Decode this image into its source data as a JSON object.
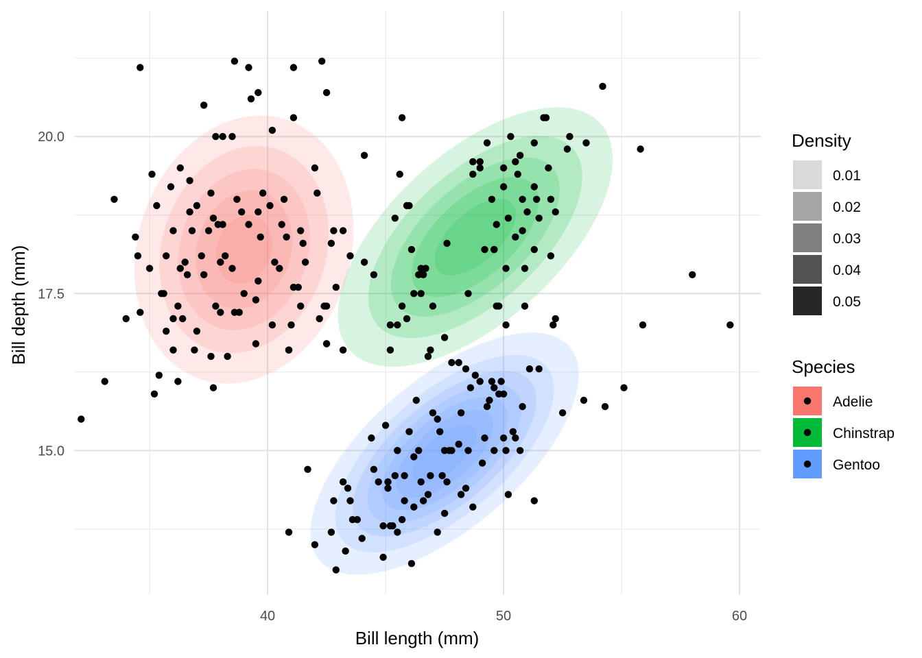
{
  "chart_data": {
    "type": "scatter",
    "subtype": "density-contour-with-points",
    "xlabel": "Bill length (mm)",
    "ylabel": "Bill depth (mm)",
    "xlim": [
      31.8,
      60.9
    ],
    "ylim": [
      12.7,
      22.0
    ],
    "x_ticks": [
      40,
      50,
      60
    ],
    "x_tick_labels": [
      "40",
      "50",
      "60"
    ],
    "y_ticks": [
      15.0,
      17.5,
      20.0
    ],
    "y_tick_labels": [
      "15.0",
      "17.5",
      "20.0"
    ],
    "grid": true,
    "legend_position": "right",
    "density_legend": {
      "title": "Density",
      "levels": [
        {
          "label": "0.01",
          "color": "#d9d9d9"
        },
        {
          "label": "0.02",
          "color": "#a6a6a6"
        },
        {
          "label": "0.03",
          "color": "#7f7f7f"
        },
        {
          "label": "0.04",
          "color": "#525252"
        },
        {
          "label": "0.05",
          "color": "#262626"
        }
      ]
    },
    "species_legend": {
      "title": "Species",
      "items": [
        {
          "label": "Adelie",
          "color": "#F8766D"
        },
        {
          "label": "Chinstrap",
          "color": "#00BA38"
        },
        {
          "label": "Gentoo",
          "color": "#619CFF"
        }
      ]
    },
    "density": [
      {
        "species": "Adelie",
        "color": "#F8766D",
        "cx": 39.0,
        "cy": 18.2,
        "sx": 2.5,
        "sy": 1.15,
        "rho": 0.15,
        "levels": [
          0.01,
          0.02,
          0.03,
          0.04,
          0.05,
          0.06,
          0.07
        ]
      },
      {
        "species": "Chinstrap",
        "color": "#00BA38",
        "cx": 48.8,
        "cy": 18.4,
        "sx": 3.1,
        "sy": 1.1,
        "rho": 0.6,
        "levels": [
          0.01,
          0.02,
          0.03,
          0.04,
          0.05,
          0.06,
          0.07
        ]
      },
      {
        "species": "Gentoo",
        "color": "#619CFF",
        "cx": 47.5,
        "cy": 14.95,
        "sx": 2.8,
        "sy": 0.95,
        "rho": 0.65,
        "levels": [
          0.01,
          0.02,
          0.03,
          0.04,
          0.05,
          0.06,
          0.07
        ]
      }
    ],
    "points": [
      [
        32.1,
        15.5
      ],
      [
        33.1,
        16.1
      ],
      [
        33.5,
        19.0
      ],
      [
        34.0,
        17.1
      ],
      [
        34.4,
        18.4
      ],
      [
        34.5,
        18.1
      ],
      [
        34.6,
        17.2
      ],
      [
        34.6,
        21.1
      ],
      [
        35.0,
        17.9
      ],
      [
        35.1,
        19.4
      ],
      [
        35.2,
        15.9
      ],
      [
        35.3,
        18.9
      ],
      [
        35.4,
        16.2
      ],
      [
        35.5,
        17.5
      ],
      [
        35.6,
        17.5
      ],
      [
        35.7,
        16.9
      ],
      [
        35.9,
        19.2
      ],
      [
        36.0,
        18.5
      ],
      [
        36.0,
        17.1
      ],
      [
        36.0,
        16.6
      ],
      [
        36.2,
        16.1
      ],
      [
        36.2,
        17.3
      ],
      [
        36.3,
        19.5
      ],
      [
        36.4,
        17.1
      ],
      [
        36.5,
        18.0
      ],
      [
        36.6,
        17.8
      ],
      [
        36.7,
        19.3
      ],
      [
        36.7,
        18.8
      ],
      [
        36.9,
        16.6
      ],
      [
        37.0,
        16.9
      ],
      [
        37.2,
        18.1
      ],
      [
        37.3,
        17.8
      ],
      [
        37.5,
        18.5
      ],
      [
        37.6,
        19.1
      ],
      [
        37.7,
        16.0
      ],
      [
        37.7,
        18.7
      ],
      [
        37.8,
        17.3
      ],
      [
        37.8,
        20.0
      ],
      [
        37.9,
        18.6
      ],
      [
        38.0,
        17.2
      ],
      [
        38.1,
        18.6
      ],
      [
        38.2,
        18.1
      ],
      [
        38.5,
        17.9
      ],
      [
        38.6,
        17.2
      ],
      [
        38.8,
        17.2
      ],
      [
        39.0,
        17.5
      ],
      [
        39.2,
        18.6
      ],
      [
        39.5,
        16.7
      ],
      [
        39.6,
        17.7
      ],
      [
        39.7,
        18.4
      ],
      [
        40.1,
        18.9
      ],
      [
        40.3,
        18.0
      ],
      [
        40.5,
        17.9
      ],
      [
        40.6,
        18.6
      ],
      [
        40.8,
        18.4
      ],
      [
        40.9,
        16.6
      ],
      [
        41.1,
        17.6
      ],
      [
        41.3,
        17.6
      ],
      [
        41.4,
        18.5
      ],
      [
        41.5,
        18.3
      ],
      [
        41.6,
        18.0
      ],
      [
        42.0,
        19.5
      ],
      [
        42.2,
        17.1
      ],
      [
        42.5,
        16.7
      ],
      [
        42.8,
        18.5
      ],
      [
        43.2,
        18.5
      ],
      [
        35.7,
        18.1
      ],
      [
        36.3,
        17.9
      ],
      [
        37.3,
        20.5
      ],
      [
        38.0,
        18.0
      ],
      [
        38.6,
        21.2
      ],
      [
        38.9,
        18.8
      ],
      [
        39.2,
        21.1
      ],
      [
        39.3,
        20.6
      ],
      [
        39.6,
        20.7
      ],
      [
        40.2,
        20.1
      ],
      [
        41.1,
        20.3
      ],
      [
        41.1,
        21.1
      ],
      [
        42.3,
        21.2
      ],
      [
        42.5,
        20.7
      ],
      [
        38.1,
        20.0
      ],
      [
        38.5,
        20.0
      ],
      [
        37.6,
        16.5
      ],
      [
        38.3,
        16.5
      ],
      [
        39.5,
        17.4
      ],
      [
        39.8,
        19.1
      ],
      [
        40.7,
        19.0
      ],
      [
        41.0,
        17.0
      ],
      [
        37.0,
        18.9
      ],
      [
        36.8,
        18.5
      ],
      [
        38.7,
        19.0
      ],
      [
        39.6,
        18.8
      ],
      [
        40.2,
        17.0
      ],
      [
        41.4,
        17.3
      ],
      [
        42.1,
        19.1
      ],
      [
        42.7,
        18.3
      ],
      [
        44.1,
        19.7
      ],
      [
        43.5,
        18.1
      ],
      [
        44.1,
        18.0
      ],
      [
        40.9,
        16.6
      ],
      [
        42.4,
        17.3
      ],
      [
        42.5,
        17.3
      ],
      [
        42.5,
        16.7
      ],
      [
        42.9,
        17.6
      ],
      [
        43.2,
        16.6
      ],
      [
        44.5,
        17.8
      ],
      [
        45.2,
        16.6
      ],
      [
        45.2,
        17.0
      ],
      [
        45.4,
        18.7
      ],
      [
        45.5,
        17.0
      ],
      [
        45.6,
        19.4
      ],
      [
        45.7,
        17.3
      ],
      [
        45.9,
        17.1
      ],
      [
        45.9,
        18.9
      ],
      [
        46.0,
        18.9
      ],
      [
        46.1,
        18.2
      ],
      [
        46.2,
        17.5
      ],
      [
        46.4,
        17.8
      ],
      [
        46.5,
        17.9
      ],
      [
        46.6,
        17.8
      ],
      [
        46.7,
        17.9
      ],
      [
        46.8,
        16.5
      ],
      [
        46.9,
        16.6
      ],
      [
        47.0,
        17.3
      ],
      [
        47.5,
        16.8
      ],
      [
        47.6,
        18.3
      ],
      [
        48.1,
        16.4
      ],
      [
        48.5,
        17.5
      ],
      [
        49.0,
        19.5
      ],
      [
        49.0,
        19.6
      ],
      [
        49.2,
        18.2
      ],
      [
        49.3,
        19.9
      ],
      [
        49.5,
        19.0
      ],
      [
        49.6,
        18.2
      ],
      [
        49.7,
        18.6
      ],
      [
        49.8,
        17.3
      ],
      [
        50.0,
        19.5
      ],
      [
        50.1,
        17.9
      ],
      [
        50.2,
        18.7
      ],
      [
        50.3,
        20.0
      ],
      [
        50.5,
        18.4
      ],
      [
        50.5,
        19.6
      ],
      [
        50.6,
        19.4
      ],
      [
        50.7,
        19.7
      ],
      [
        50.8,
        19.0
      ],
      [
        50.8,
        18.5
      ],
      [
        50.9,
        17.9
      ],
      [
        51.0,
        18.8
      ],
      [
        51.3,
        18.2
      ],
      [
        51.3,
        19.2
      ],
      [
        51.3,
        19.9
      ],
      [
        51.4,
        19.0
      ],
      [
        51.5,
        18.7
      ],
      [
        51.7,
        20.3
      ],
      [
        51.9,
        19.5
      ],
      [
        52.0,
        18.1
      ],
      [
        52.0,
        19.0
      ],
      [
        52.2,
        18.8
      ],
      [
        52.7,
        19.8
      ],
      [
        52.8,
        20.0
      ],
      [
        53.5,
        19.9
      ],
      [
        54.2,
        20.8
      ],
      [
        55.8,
        19.8
      ],
      [
        58.0,
        17.8
      ],
      [
        49.7,
        17.3
      ],
      [
        50.9,
        17.3
      ],
      [
        50.1,
        17.0
      ],
      [
        46.5,
        17.5
      ],
      [
        45.7,
        20.3
      ],
      [
        49.6,
        18.2
      ],
      [
        51.8,
        20.3
      ],
      [
        50.0,
        19.2
      ],
      [
        48.7,
        19.4
      ],
      [
        48.7,
        19.6
      ],
      [
        40.9,
        13.7
      ],
      [
        41.7,
        14.7
      ],
      [
        42.0,
        13.5
      ],
      [
        42.7,
        13.7
      ],
      [
        42.8,
        14.2
      ],
      [
        42.9,
        13.1
      ],
      [
        43.2,
        14.5
      ],
      [
        43.3,
        13.4
      ],
      [
        43.5,
        14.2
      ],
      [
        43.6,
        13.9
      ],
      [
        43.8,
        13.9
      ],
      [
        44.0,
        13.6
      ],
      [
        44.4,
        15.2
      ],
      [
        44.5,
        14.7
      ],
      [
        44.9,
        13.3
      ],
      [
        45.0,
        15.4
      ],
      [
        45.1,
        14.5
      ],
      [
        45.2,
        13.8
      ],
      [
        45.3,
        13.8
      ],
      [
        45.4,
        14.6
      ],
      [
        45.5,
        13.7
      ],
      [
        45.5,
        15.0
      ],
      [
        45.7,
        13.9
      ],
      [
        45.8,
        14.6
      ],
      [
        46.1,
        13.2
      ],
      [
        46.2,
        14.9
      ],
      [
        46.4,
        15.0
      ],
      [
        46.5,
        14.5
      ],
      [
        46.6,
        14.2
      ],
      [
        46.8,
        14.3
      ],
      [
        47.0,
        15.6
      ],
      [
        47.2,
        13.7
      ],
      [
        47.3,
        15.3
      ],
      [
        47.4,
        14.6
      ],
      [
        47.5,
        14.0
      ],
      [
        47.6,
        14.5
      ],
      [
        47.8,
        15.0
      ],
      [
        48.1,
        15.1
      ],
      [
        48.2,
        14.3
      ],
      [
        48.4,
        14.4
      ],
      [
        48.5,
        15.0
      ],
      [
        48.7,
        14.1
      ],
      [
        48.8,
        16.2
      ],
      [
        49.1,
        14.8
      ],
      [
        49.2,
        15.2
      ],
      [
        49.3,
        15.7
      ],
      [
        49.5,
        16.1
      ],
      [
        49.6,
        16.0
      ],
      [
        49.8,
        15.9
      ],
      [
        50.0,
        15.2
      ],
      [
        50.1,
        15.0
      ],
      [
        50.2,
        14.3
      ],
      [
        50.4,
        15.3
      ],
      [
        50.5,
        15.2
      ],
      [
        50.8,
        15.7
      ],
      [
        51.1,
        16.3
      ],
      [
        51.3,
        14.2
      ],
      [
        51.5,
        16.3
      ],
      [
        52.1,
        17.0
      ],
      [
        52.2,
        17.1
      ],
      [
        52.5,
        15.6
      ],
      [
        53.4,
        15.8
      ],
      [
        54.3,
        15.7
      ],
      [
        55.1,
        16.0
      ],
      [
        55.9,
        17.0
      ],
      [
        59.6,
        17.0
      ],
      [
        47.7,
        15.0
      ],
      [
        46.9,
        14.6
      ],
      [
        45.8,
        14.2
      ],
      [
        48.2,
        15.6
      ],
      [
        49.4,
        15.8
      ],
      [
        46.2,
        14.1
      ],
      [
        47.5,
        15.0
      ],
      [
        45.1,
        14.4
      ],
      [
        46.3,
        15.8
      ],
      [
        49.9,
        16.1
      ],
      [
        50.7,
        15.0
      ],
      [
        48.6,
        16.0
      ],
      [
        49.0,
        16.1
      ],
      [
        45.5,
        15.0
      ],
      [
        44.7,
        14.5
      ],
      [
        47.2,
        15.5
      ],
      [
        48.4,
        16.3
      ],
      [
        46.0,
        15.3
      ],
      [
        44.9,
        13.8
      ],
      [
        50.0,
        15.9
      ],
      [
        43.4,
        14.4
      ],
      [
        49.6,
        15.0
      ],
      [
        47.8,
        16.4
      ]
    ]
  }
}
